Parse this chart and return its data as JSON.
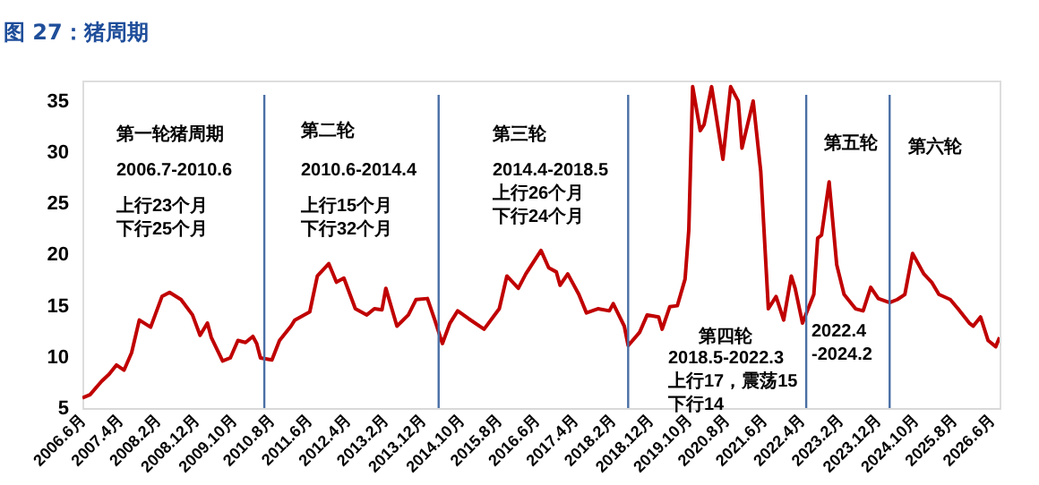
{
  "chart_data": {
    "type": "line",
    "title": "图 27：猪周期",
    "x": [
      "2006-06",
      "2006-08",
      "2006-11",
      "2007-01",
      "2007-03",
      "2007-05",
      "2007-07",
      "2007-09",
      "2007-12",
      "2008-03",
      "2008-05",
      "2008-08",
      "2008-11",
      "2009-01",
      "2009-03",
      "2009-04",
      "2009-07",
      "2009-09",
      "2009-11",
      "2010-01",
      "2010-03",
      "2010-04",
      "2010-05",
      "2010-08",
      "2010-10",
      "2011-01",
      "2011-02",
      "2011-06",
      "2011-08",
      "2011-11",
      "2012-01",
      "2012-03",
      "2012-06",
      "2012-09",
      "2012-11",
      "2013-01",
      "2013-02",
      "2013-05",
      "2013-08",
      "2013-10",
      "2014-01",
      "2014-03",
      "2014-05",
      "2014-07",
      "2014-09",
      "2014-12",
      "2015-04",
      "2015-08",
      "2015-10",
      "2016-01",
      "2016-03",
      "2016-07",
      "2016-09",
      "2016-11",
      "2016-12",
      "2017-02",
      "2017-05",
      "2017-07",
      "2017-10",
      "2018-01",
      "2018-02",
      "2018-05",
      "2018-06",
      "2018-09",
      "2018-11",
      "2019-02",
      "2019-03",
      "2019-05",
      "2019-07",
      "2019-09",
      "2019-10",
      "2019-11",
      "2020-01",
      "2020-02",
      "2020-04",
      "2020-05",
      "2020-07",
      "2020-09",
      "2020-11",
      "2020-12",
      "2021-03",
      "2021-05",
      "2021-07",
      "2021-09",
      "2021-11",
      "2022-01",
      "2022-02",
      "2022-04",
      "2022-07",
      "2022-08",
      "2022-09",
      "2022-11",
      "2023-01",
      "2023-03",
      "2023-06",
      "2023-08",
      "2023-10",
      "2023-12",
      "2024-03",
      "2024-05",
      "2024-07",
      "2024-09",
      "2024-12",
      "2025-02",
      "2025-04",
      "2025-07",
      "2025-09",
      "2025-12",
      "2026-01",
      "2026-03",
      "2026-05",
      "2026-07",
      "2026-08"
    ],
    "series": [
      {
        "color": "#c00000",
        "values": [
          6.0,
          6.3,
          7.6,
          8.3,
          9.2,
          8.7,
          10.4,
          13.6,
          12.9,
          15.9,
          16.3,
          15.6,
          14.1,
          12.1,
          13.3,
          11.9,
          9.6,
          9.9,
          11.6,
          11.4,
          12.0,
          11.3,
          9.9,
          9.7,
          11.6,
          13.0,
          13.6,
          14.4,
          17.9,
          19.1,
          17.3,
          17.7,
          14.7,
          14.1,
          14.7,
          14.6,
          16.7,
          13.0,
          14.1,
          15.6,
          15.7,
          13.6,
          11.3,
          13.3,
          14.5,
          13.7,
          12.7,
          14.7,
          17.9,
          16.7,
          18.1,
          20.4,
          18.7,
          18.3,
          17.0,
          18.1,
          16.1,
          14.3,
          14.7,
          14.5,
          15.2,
          13.0,
          11.1,
          12.4,
          14.1,
          13.9,
          12.7,
          14.9,
          15.0,
          17.6,
          22.4,
          36.4,
          32.1,
          32.7,
          36.4,
          34.1,
          29.3,
          36.4,
          35.0,
          30.4,
          35.0,
          28.1,
          14.7,
          15.9,
          13.6,
          17.9,
          16.7,
          13.3,
          16.1,
          21.6,
          21.9,
          27.1,
          19.0,
          16.1,
          14.7,
          14.5,
          16.8,
          15.7,
          15.3,
          15.6,
          16.1,
          20.1,
          18.1,
          17.3,
          16.1,
          15.6,
          14.7,
          13.3,
          13.0,
          13.9,
          11.6,
          11.0,
          11.9
        ]
      }
    ],
    "xlim": [
      "2006-06",
      "2026-08"
    ],
    "xticks": [
      {
        "value": "2006-06",
        "label": "2006.6月"
      },
      {
        "value": "2007-04",
        "label": "2007.4月"
      },
      {
        "value": "2008-02",
        "label": "2008.2月"
      },
      {
        "value": "2008-12",
        "label": "2008.12月"
      },
      {
        "value": "2009-10",
        "label": "2009.10月"
      },
      {
        "value": "2010-08",
        "label": "2010.8月"
      },
      {
        "value": "2011-06",
        "label": "2011.6月"
      },
      {
        "value": "2012-04",
        "label": "2012.4月"
      },
      {
        "value": "2013-02",
        "label": "2013.2月"
      },
      {
        "value": "2013-12",
        "label": "2013.12月"
      },
      {
        "value": "2014-10",
        "label": "2014.10月"
      },
      {
        "value": "2015-08",
        "label": "2015.8月"
      },
      {
        "value": "2016-06",
        "label": "2016.6月"
      },
      {
        "value": "2017-04",
        "label": "2017.4月"
      },
      {
        "value": "2018-02",
        "label": "2018.2月"
      },
      {
        "value": "2018-12",
        "label": "2018.12月"
      },
      {
        "value": "2019-10",
        "label": "2019.10月"
      },
      {
        "value": "2020-08",
        "label": "2020.8月"
      },
      {
        "value": "2021-06",
        "label": "2021.6月"
      },
      {
        "value": "2022-04",
        "label": "2022.4月"
      },
      {
        "value": "2023-02",
        "label": "2023.2月"
      },
      {
        "value": "2023-12",
        "label": "2023.12月"
      },
      {
        "value": "2024-10",
        "label": "2024.10月"
      },
      {
        "value": "2025-08",
        "label": "2025.8月"
      },
      {
        "value": "2026-06",
        "label": "2026.6月"
      }
    ],
    "ylim": [
      5,
      37
    ],
    "yticks": [
      5,
      10,
      15,
      20,
      25,
      30,
      35
    ],
    "grid": false,
    "marker": "none",
    "line_style": "solid",
    "ref_lines": [
      {
        "axis": "x",
        "value": "2010-06",
        "color": "#4a6fa5"
      },
      {
        "axis": "x",
        "value": "2014-04",
        "color": "#4a6fa5"
      },
      {
        "axis": "x",
        "value": "2018-06",
        "color": "#4a6fa5"
      },
      {
        "axis": "x",
        "value": "2022-05",
        "color": "#4a6fa5"
      },
      {
        "axis": "x",
        "value": "2024-03",
        "color": "#4a6fa5"
      }
    ],
    "annotations": [
      "第一轮猪周期",
      "2006.7-2010.6",
      "上行23个月",
      "下行25个月",
      "第二轮",
      "2010.6-2014.4",
      "上行15个月",
      "下行32个月",
      "第三轮",
      "2014.4-2018.5",
      "上行26个月",
      "下行24个月",
      "第四轮",
      "2018.5-2022.3",
      "上行17，震荡15",
      "下行14",
      "第五轮",
      "2022.4",
      "-2024.2",
      "第六轮"
    ]
  }
}
